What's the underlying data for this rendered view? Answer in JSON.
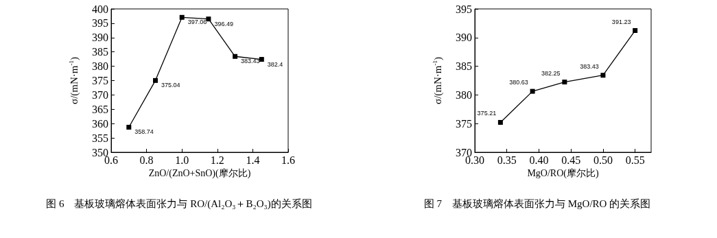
{
  "chart_data": [
    {
      "type": "line",
      "title": "图 6　基板玻璃熔体表面张力与 RO/(Al₂O₃＋B₂O₃)的关系图",
      "xlabel": "ZnO/(ZnO+SnO)(摩尔比)",
      "ylabel": "σ/(mN·m$^{-1}$)",
      "x": [
        0.7,
        0.85,
        1.0,
        1.15,
        1.3,
        1.45
      ],
      "series": [
        {
          "color": "#000000",
          "values": [
            358.74,
            375.04,
            397.06,
            396.49,
            383.43,
            382.4
          ]
        }
      ],
      "xlim": [
        0.6,
        1.6
      ],
      "xticks": [
        0.6,
        0.8,
        {
          "value": 1,
          "label": "1.0"
        },
        1.2,
        1.4,
        1.6
      ],
      "ylim": [
        350,
        400
      ],
      "yticks": [
        350,
        355,
        360,
        365,
        370,
        375,
        380,
        385,
        390,
        395,
        400
      ],
      "marker": "square",
      "line_style": "solid",
      "grid": false,
      "data_labels": true
    },
    {
      "type": "line",
      "title": "图 7　基板玻璃熔体表面张力与 MgO/RO 的关系图",
      "xlabel": "MgO/RO(摩尔比)",
      "ylabel": "σ/(mN·m$^{-1}$)",
      "x": [
        0.34,
        0.39,
        0.44,
        0.5,
        0.55
      ],
      "series": [
        {
          "color": "#000000",
          "values": [
            375.21,
            380.63,
            382.25,
            383.43,
            391.23
          ]
        }
      ],
      "xlim": [
        0.3,
        0.575
      ],
      "xticks": [
        {
          "value": 0.3,
          "label": "0.30"
        },
        0.35,
        {
          "value": 0.4,
          "label": "0.40"
        },
        0.45,
        {
          "value": 0.5,
          "label": "0.50"
        },
        0.55
      ],
      "ylim": [
        370,
        395
      ],
      "yticks": [
        370,
        375,
        380,
        385,
        390,
        395
      ],
      "marker": "square",
      "line_style": "solid",
      "grid": false,
      "data_labels": true
    }
  ]
}
